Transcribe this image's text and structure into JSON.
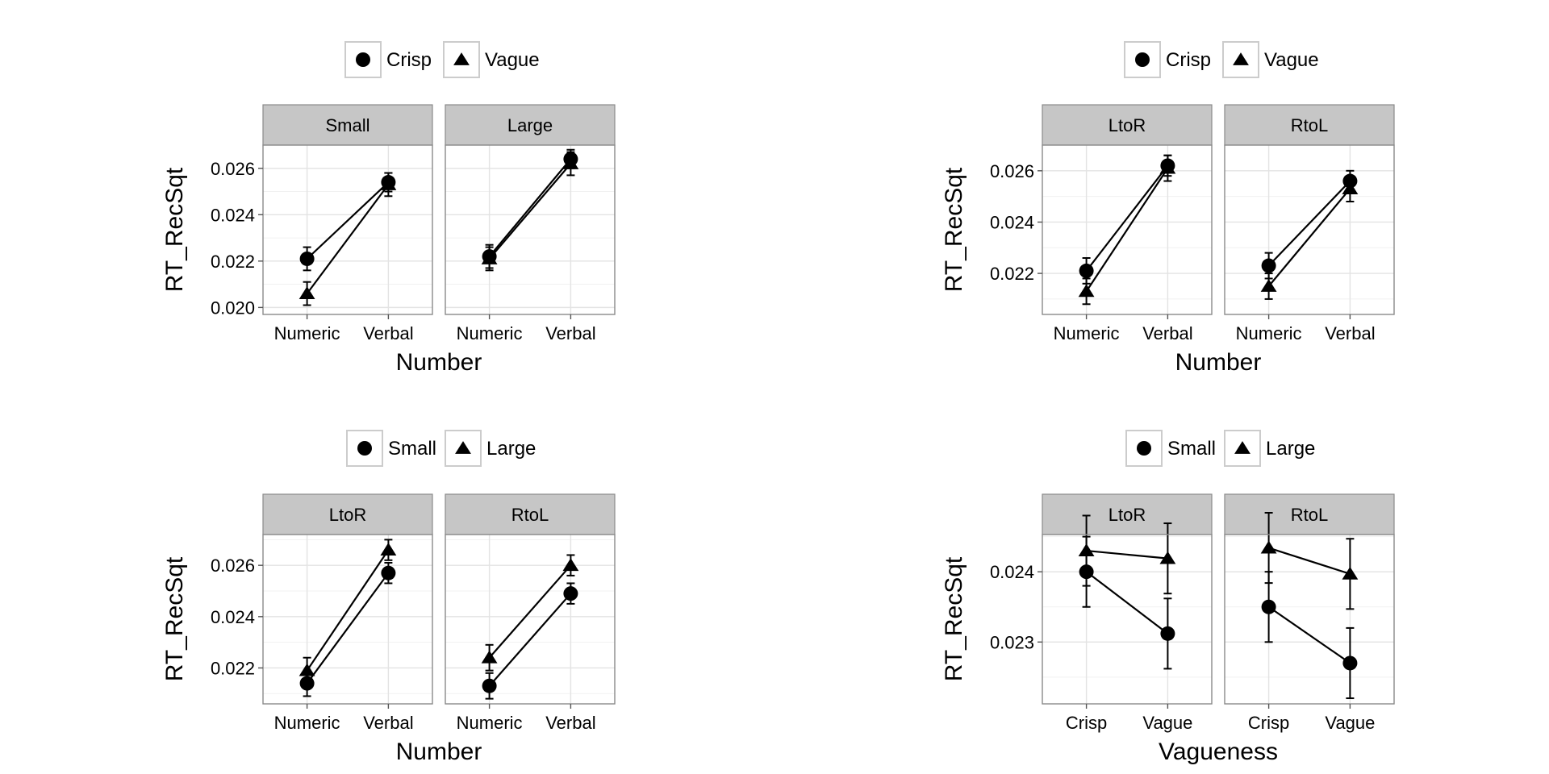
{
  "chart_data": [
    {
      "type": "line",
      "ylabel": "RT_RecSqt",
      "xlabel": "Number",
      "x_categories": [
        "Numeric",
        "Verbal"
      ],
      "ylim": [
        0.0197,
        0.027
      ],
      "yticks": [
        0.02,
        0.022,
        0.024,
        0.026
      ],
      "ytick_labels": [
        "0.020",
        "0.022",
        "0.024",
        "0.026"
      ],
      "legend": {
        "position": "top",
        "entries": [
          {
            "label": "Crisp",
            "shape": "circle"
          },
          {
            "label": "Vague",
            "shape": "triangle"
          }
        ]
      },
      "grid": true,
      "facets": [
        {
          "label": "Small",
          "series": [
            {
              "name": "Crisp",
              "values": [
                0.0221,
                0.0254
              ],
              "err": [
                0.0005,
                0.0004
              ]
            },
            {
              "name": "Vague",
              "values": [
                0.0206,
                0.0253
              ],
              "err": [
                0.0005,
                0.0005
              ]
            }
          ]
        },
        {
          "label": "Large",
          "series": [
            {
              "name": "Crisp",
              "values": [
                0.0222,
                0.0264
              ],
              "err": [
                0.0005,
                0.0004
              ]
            },
            {
              "name": "Vague",
              "values": [
                0.0221,
                0.0262
              ],
              "err": [
                0.0005,
                0.0005
              ]
            }
          ]
        }
      ]
    },
    {
      "type": "line",
      "ylabel": "RT_RecSqt",
      "xlabel": "Number",
      "x_categories": [
        "Numeric",
        "Verbal"
      ],
      "ylim": [
        0.0204,
        0.027
      ],
      "yticks": [
        0.022,
        0.024,
        0.026
      ],
      "ytick_labels": [
        "0.022",
        "0.024",
        "0.026"
      ],
      "legend": {
        "position": "top",
        "entries": [
          {
            "label": "Crisp",
            "shape": "circle"
          },
          {
            "label": "Vague",
            "shape": "triangle"
          }
        ]
      },
      "grid": true,
      "facets": [
        {
          "label": "LtoR",
          "series": [
            {
              "name": "Crisp",
              "values": [
                0.0221,
                0.0262
              ],
              "err": [
                0.0005,
                0.0004
              ]
            },
            {
              "name": "Vague",
              "values": [
                0.0213,
                0.0261
              ],
              "err": [
                0.0005,
                0.0005
              ]
            }
          ]
        },
        {
          "label": "RtoL",
          "series": [
            {
              "name": "Crisp",
              "values": [
                0.0223,
                0.0256
              ],
              "err": [
                0.0005,
                0.0004
              ]
            },
            {
              "name": "Vague",
              "values": [
                0.0215,
                0.0253
              ],
              "err": [
                0.0005,
                0.0005
              ]
            }
          ]
        }
      ]
    },
    {
      "type": "line",
      "ylabel": "RT_RecSqt",
      "xlabel": "Number",
      "x_categories": [
        "Numeric",
        "Verbal"
      ],
      "ylim": [
        0.0206,
        0.0272
      ],
      "yticks": [
        0.022,
        0.024,
        0.026
      ],
      "ytick_labels": [
        "0.022",
        "0.024",
        "0.026"
      ],
      "legend": {
        "position": "top",
        "entries": [
          {
            "label": "Small",
            "shape": "circle"
          },
          {
            "label": "Large",
            "shape": "triangle"
          }
        ]
      },
      "grid": true,
      "facets": [
        {
          "label": "LtoR",
          "series": [
            {
              "name": "Small",
              "values": [
                0.0214,
                0.0257
              ],
              "err": [
                0.0005,
                0.0004
              ]
            },
            {
              "name": "Large",
              "values": [
                0.0219,
                0.0266
              ],
              "err": [
                0.0005,
                0.0004
              ]
            }
          ]
        },
        {
          "label": "RtoL",
          "series": [
            {
              "name": "Small",
              "values": [
                0.0213,
                0.0249
              ],
              "err": [
                0.0005,
                0.0004
              ]
            },
            {
              "name": "Large",
              "values": [
                0.0224,
                0.026
              ],
              "err": [
                0.0005,
                0.0004
              ]
            }
          ]
        }
      ]
    },
    {
      "type": "line",
      "ylabel": "RT_RecSqt",
      "xlabel": "Vagueness",
      "x_categories": [
        "Crisp",
        "Vague"
      ],
      "ylim": [
        0.02212,
        0.02453
      ],
      "yticks": [
        0.023,
        0.024
      ],
      "ytick_labels": [
        "0.023",
        "0.024"
      ],
      "legend": {
        "position": "top",
        "entries": [
          {
            "label": "Small",
            "shape": "circle"
          },
          {
            "label": "Large",
            "shape": "triangle"
          }
        ]
      },
      "grid": true,
      "facets": [
        {
          "label": "LtoR",
          "series": [
            {
              "name": "Small",
              "values": [
                0.024,
                0.02312
              ],
              "err": [
                0.0005,
                0.0005
              ]
            },
            {
              "name": "Large",
              "values": [
                0.0243,
                0.02419
              ],
              "err": [
                0.0005,
                0.0005
              ]
            }
          ]
        },
        {
          "label": "RtoL",
          "series": [
            {
              "name": "Small",
              "values": [
                0.0235,
                0.0227
              ],
              "err": [
                0.0005,
                0.0005
              ]
            },
            {
              "name": "Large",
              "values": [
                0.02434,
                0.02397
              ],
              "err": [
                0.0005,
                0.0005
              ]
            }
          ]
        }
      ]
    }
  ]
}
